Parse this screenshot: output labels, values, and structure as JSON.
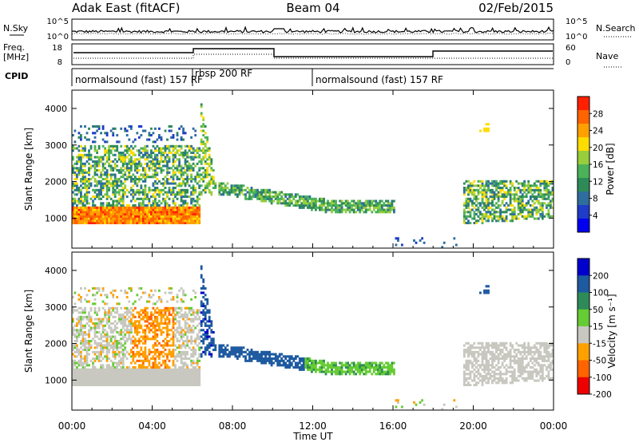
{
  "header": {
    "title": "Adak East (fitACF)",
    "beam": "Beam 04",
    "date": "02/Feb/2015"
  },
  "top_panels": {
    "nsky_label": "N.Sky",
    "nsearch_label": "N.Search",
    "noise_ticks": [
      "10^5",
      "10^0"
    ],
    "freq_label_1": "Freq.",
    "freq_label_2": "[MHz]",
    "freq_ticks": [
      "18",
      "8"
    ],
    "nave_label": "Nave",
    "nave_ticks": [
      "60",
      "0"
    ],
    "cpid_label": "CPID",
    "cpid_segments": [
      {
        "label": "normalsound (fast) 157 RF",
        "start": 0,
        "end": 6.0
      },
      {
        "label": "rbsp 200 RF",
        "start": 6.0,
        "end": 12.0
      },
      {
        "label": "normalsound (fast) 157 RF",
        "start": 12.0,
        "end": 24.0
      }
    ]
  },
  "chart_data": [
    {
      "type": "heatmap",
      "name": "power",
      "ylabel": "Slant Range [km]",
      "yticks": [
        "1000",
        "2000",
        "3000",
        "4000"
      ],
      "ylim": [
        180,
        4500
      ],
      "xlim": [
        0,
        24
      ],
      "colorbar_label": "Power [dB]",
      "colorbar_ticks": [
        "4",
        "8",
        "12",
        "16",
        "20",
        "24",
        "28"
      ],
      "colorbar_range": [
        0,
        30
      ],
      "colors": [
        "#0000ee",
        "#1e3cc8",
        "#2e6e9e",
        "#2e8b57",
        "#4bb25a",
        "#98cd3c",
        "#ffdc00",
        "#ffa000",
        "#ff6400",
        "#ff2000"
      ]
    },
    {
      "type": "heatmap",
      "name": "velocity",
      "ylabel": "Slant Range [km]",
      "yticks": [
        "1000",
        "2000",
        "3000",
        "4000"
      ],
      "ylim": [
        180,
        4500
      ],
      "xlim": [
        0,
        24
      ],
      "colorbar_label": "Velocity [m s⁻¹]",
      "colorbar_ticks": [
        "200",
        "100",
        "50",
        "15",
        "-15",
        "-50",
        "-100",
        "-200"
      ],
      "colorbar_range": [
        -250,
        250
      ],
      "colors": [
        "#0000cc",
        "#1e5aa0",
        "#2e8b57",
        "#66cc33",
        "#c8c8c0",
        "#ffa000",
        "#ff6400",
        "#ee0000"
      ]
    }
  ],
  "x_axis": {
    "ticks": [
      "00:00",
      "04:00",
      "08:00",
      "12:00",
      "16:00",
      "20:00",
      "00:00"
    ],
    "label": "Time UT"
  }
}
